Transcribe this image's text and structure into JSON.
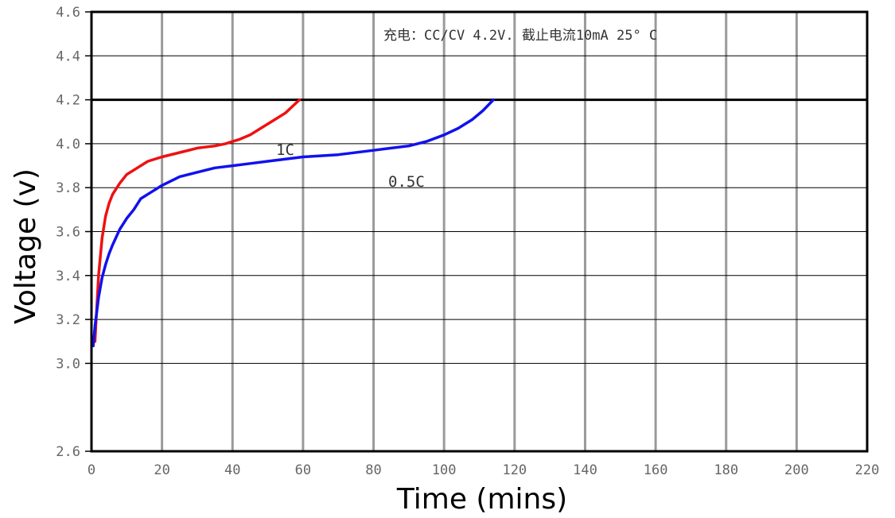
{
  "chart_data": {
    "type": "line",
    "xlabel": "Time (mins)",
    "ylabel": "Voltage (v)",
    "xlim": [
      0,
      220
    ],
    "ylim": [
      2.6,
      4.6
    ],
    "x_ticks": [
      "0",
      "20",
      "40",
      "60",
      "80",
      "100",
      "120",
      "140",
      "160",
      "180",
      "200",
      "220"
    ],
    "y_ticks": [
      {
        "value": 2.6,
        "label": "2.6"
      },
      {
        "value": 3.0,
        "label": "3.0"
      },
      {
        "value": 3.2,
        "label": "3.2"
      },
      {
        "value": 3.4,
        "label": "3.4"
      },
      {
        "value": 3.6,
        "label": "3.6"
      },
      {
        "value": 3.8,
        "label": "3.8"
      },
      {
        "value": 4.0,
        "label": "4.0"
      },
      {
        "value": 4.2,
        "label": "4.2"
      },
      {
        "value": 4.4,
        "label": "4.4"
      },
      {
        "value": 4.6,
        "label": "4.6"
      }
    ],
    "annotation": "充电：CC/CV 4.2V. 截止电流10mA 25° C",
    "reference_line": {
      "y": 4.2,
      "color": "#000000"
    },
    "grid": true,
    "series": [
      {
        "name": "1C",
        "color": "#ee1111",
        "x": [
          1,
          1.5,
          2,
          3,
          4,
          5,
          6,
          8,
          10,
          13,
          16,
          20,
          25,
          30,
          35,
          38,
          40,
          42,
          45,
          48,
          50,
          52,
          55,
          57,
          59
        ],
        "y": [
          3.1,
          3.25,
          3.4,
          3.57,
          3.67,
          3.73,
          3.77,
          3.82,
          3.86,
          3.89,
          3.92,
          3.94,
          3.96,
          3.98,
          3.99,
          4.0,
          4.01,
          4.02,
          4.04,
          4.07,
          4.09,
          4.11,
          4.14,
          4.17,
          4.2
        ]
      },
      {
        "name": "0.5C",
        "color": "#1111ee",
        "x": [
          0.5,
          1,
          2,
          3,
          4,
          5,
          6,
          8,
          10,
          12,
          14,
          17,
          20,
          25,
          30,
          35,
          40,
          45,
          50,
          60,
          70,
          80,
          85,
          90,
          95,
          100,
          104,
          108,
          111,
          114
        ],
        "y": [
          3.08,
          3.17,
          3.3,
          3.39,
          3.45,
          3.5,
          3.54,
          3.61,
          3.66,
          3.7,
          3.75,
          3.78,
          3.81,
          3.85,
          3.87,
          3.89,
          3.9,
          3.91,
          3.92,
          3.94,
          3.95,
          3.97,
          3.98,
          3.99,
          4.01,
          4.04,
          4.07,
          4.11,
          4.15,
          4.2
        ]
      }
    ]
  }
}
